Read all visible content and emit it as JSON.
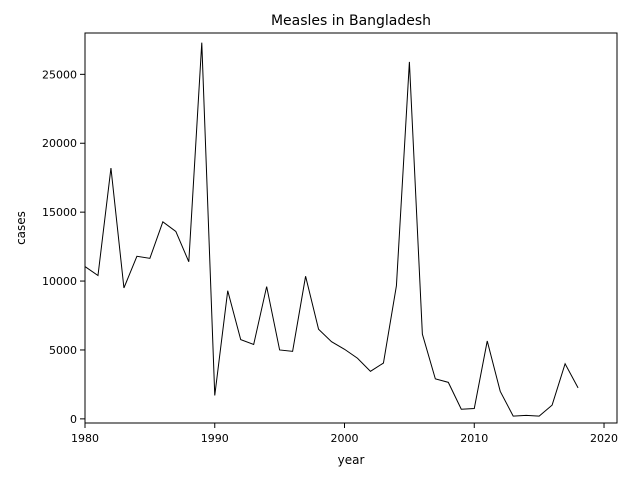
{
  "chart_data": {
    "type": "line",
    "title": "Measles in Bangladesh",
    "xlabel": "year",
    "ylabel": "cases",
    "xlim": [
      1980,
      2021
    ],
    "ylim": [
      -300,
      28000
    ],
    "xticks": [
      1980,
      1990,
      2000,
      2010,
      2020
    ],
    "yticks": [
      0,
      5000,
      10000,
      15000,
      20000,
      25000
    ],
    "grid": false,
    "x": [
      1980,
      1981,
      1982,
      1983,
      1984,
      1985,
      1986,
      1987,
      1988,
      1989,
      1990,
      1991,
      1992,
      1993,
      1994,
      1995,
      1996,
      1997,
      1998,
      1999,
      2000,
      2001,
      2002,
      2003,
      2004,
      2005,
      2006,
      2007,
      2008,
      2009,
      2010,
      2011,
      2012,
      2013,
      2014,
      2015,
      2016,
      2017,
      2018
    ],
    "y": [
      11050,
      10400,
      18200,
      9500,
      11800,
      11650,
      14300,
      13600,
      11400,
      27300,
      1700,
      9300,
      5750,
      5400,
      9600,
      5000,
      4900,
      10350,
      6500,
      5600,
      5050,
      4400,
      3450,
      4050,
      9650,
      25900,
      6150,
      2900,
      2650,
      700,
      750,
      5650,
      2000,
      200,
      250,
      200,
      1000,
      4000,
      2250
    ]
  }
}
